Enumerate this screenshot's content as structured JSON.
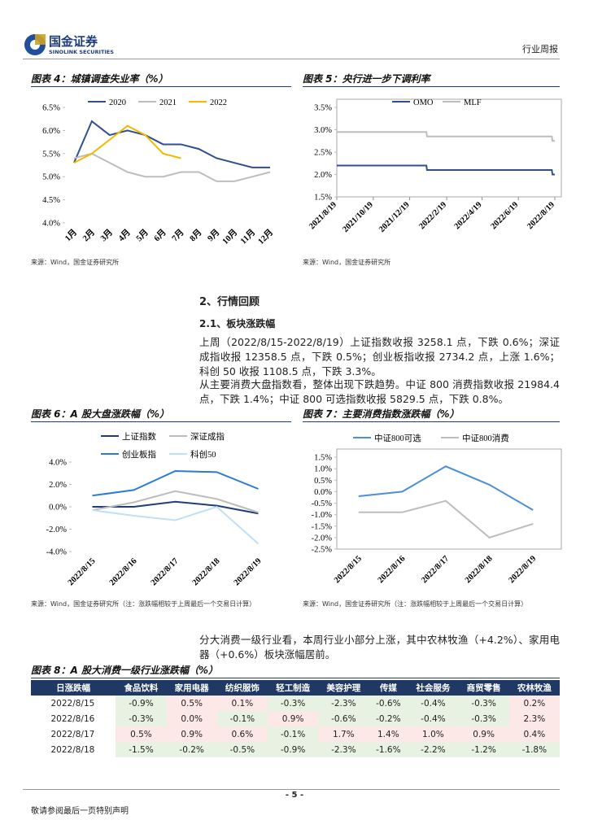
{
  "header": {
    "logo": "国金证券",
    "logo_en": "SINOLINK SECURITIES",
    "report_type": "行业周报"
  },
  "chart_data": [
    {
      "type": "line",
      "title": "图表 4：城镇调查失业率（%）",
      "source": "来源：Wind，国金证券研究所",
      "categories": [
        "1月",
        "2月",
        "3月",
        "4月",
        "5月",
        "6月",
        "7月",
        "8月",
        "9月",
        "10月",
        "11月",
        "12月"
      ],
      "series": [
        {
          "name": "2020",
          "color": "#2f4f8f",
          "values": [
            5.3,
            6.2,
            5.9,
            6.0,
            5.9,
            5.7,
            5.7,
            5.6,
            5.4,
            5.3,
            5.2,
            5.2
          ]
        },
        {
          "name": "2021",
          "color": "#bdbdbd",
          "values": [
            5.4,
            5.5,
            5.3,
            5.1,
            5.0,
            5.0,
            5.1,
            5.1,
            4.9,
            4.9,
            5.0,
            5.1
          ]
        },
        {
          "name": "2022",
          "color": "#f5b800",
          "values": [
            5.3,
            5.5,
            5.8,
            6.1,
            5.9,
            5.5,
            5.4,
            null,
            null,
            null,
            null,
            null
          ]
        }
      ],
      "ylim": [
        4.0,
        6.5
      ],
      "yticks": [
        {
          "value": 4.0,
          "label": "4.0%"
        },
        {
          "value": 4.5,
          "label": "4.5%"
        },
        {
          "value": 5.0,
          "label": "5.0%"
        },
        {
          "value": 5.5,
          "label": "5.5%"
        },
        {
          "value": 6.0,
          "label": "6.0%"
        },
        {
          "value": 6.5,
          "label": "6.5%"
        }
      ]
    },
    {
      "type": "line",
      "title": "图表 5：央行进一步下调利率",
      "source": "来源：Wind，国金证券研究所",
      "x": [
        "2021/8/19",
        "2022/1/16",
        "2022/1/17",
        "2022/8/14",
        "2022/8/15",
        "2022/8/19"
      ],
      "series": [
        {
          "name": "OMO",
          "color": "#2f4f8f",
          "values": [
            2.2,
            2.2,
            2.1,
            2.1,
            2.0,
            2.0
          ]
        },
        {
          "name": "MLF",
          "color": "#bdbdbd",
          "values": [
            2.95,
            2.95,
            2.85,
            2.85,
            2.75,
            2.75
          ]
        }
      ],
      "xlim": [
        "2021/8/19",
        "2022/8/19"
      ],
      "xticks": [
        "2021/8/19",
        "2021/10/19",
        "2021/12/19",
        "2022/2/19",
        "2022/4/19",
        "2022/6/19",
        "2022/8/19"
      ],
      "ylim": [
        1.5,
        3.5
      ],
      "yticks": [
        {
          "value": 1.5,
          "label": "1.5%"
        },
        {
          "value": 2.0,
          "label": "2.0%"
        },
        {
          "value": 2.5,
          "label": "2.5%"
        },
        {
          "value": 3.0,
          "label": "3.0%"
        },
        {
          "value": 3.5,
          "label": "3.5%"
        }
      ]
    },
    {
      "type": "line",
      "title": "图表 6：A 股大盘涨跌幅（%）",
      "source": "来源：Wind，国金证券研究所（注：涨跌幅相较于上周最后一个交易日计算）",
      "categories": [
        "2022/8/15",
        "2022/8/16",
        "2022/8/17",
        "2022/8/18",
        "2022/8/19"
      ],
      "series": [
        {
          "name": "上证指数",
          "color": "#1f3d7a",
          "values": [
            0.0,
            0.0,
            0.45,
            0.1,
            -0.6
          ]
        },
        {
          "name": "深证成指",
          "color": "#bdbdbd",
          "values": [
            -0.3,
            0.4,
            1.4,
            0.7,
            -0.5
          ]
        },
        {
          "name": "创业板指",
          "color": "#2b7bd6",
          "values": [
            1.0,
            1.5,
            3.2,
            3.1,
            1.6
          ]
        },
        {
          "name": "科创50",
          "color": "#bfe0f5",
          "values": [
            -0.3,
            -0.8,
            -1.2,
            0.0,
            -3.3
          ]
        }
      ],
      "ylim": [
        -4.0,
        4.0
      ],
      "yticks": [
        {
          "value": -4.0,
          "label": "-4.0%"
        },
        {
          "value": -2.0,
          "label": "-2.0%"
        },
        {
          "value": 0.0,
          "label": "0.0%"
        },
        {
          "value": 2.0,
          "label": "2.0%"
        },
        {
          "value": 4.0,
          "label": "4.0%"
        }
      ]
    },
    {
      "type": "line",
      "title": "图表 7：主要消费指数涨跌幅（%）",
      "source": "来源：Wind，国金证券研究所（注：涨跌幅相较于上周最后一个交易日计算）",
      "categories": [
        "2022/8/15",
        "2022/8/16",
        "2022/8/17",
        "2022/8/18",
        "2022/8/19"
      ],
      "series": [
        {
          "name": "中证800可选",
          "color": "#4a8fd8",
          "values": [
            -0.2,
            0.0,
            1.1,
            0.3,
            -0.8
          ]
        },
        {
          "name": "中证800消费",
          "color": "#bdbdbd",
          "values": [
            -0.9,
            -0.9,
            -0.4,
            -2.0,
            -1.4
          ]
        }
      ],
      "ylim": [
        -2.5,
        1.5
      ],
      "yticks": [
        {
          "value": -2.5,
          "label": "-2.5%"
        },
        {
          "value": -2.0,
          "label": "-2.0%"
        },
        {
          "value": -1.5,
          "label": "-1.5%"
        },
        {
          "value": -1.0,
          "label": "-1.0%"
        },
        {
          "value": -0.5,
          "label": "-0.5%"
        },
        {
          "value": 0.0,
          "label": "0.0%"
        },
        {
          "value": 0.5,
          "label": "0.5%"
        },
        {
          "value": 1.0,
          "label": "1.0%"
        },
        {
          "value": 1.5,
          "label": "1.5%"
        }
      ]
    }
  ],
  "section": {
    "title": "2、行情回顾",
    "subtitle": "2.1、板块涨跌幅"
  },
  "paragraphs": [
    "上周（2022/8/15-2022/8/19）上证指数收报 3258.1 点，下跌 0.6%；深证成指收报 12358.5 点，下跌 0.5%；创业板指收报 2734.2 点，上涨 1.6%；科创 50 收报 1108.5 点，下跌 3.3%。",
    "从主要消费大盘指数看，整体出现下跌趋势。中证 800 消费指数收报 21984.4 点，下跌 1.4%；中证 800 可选指数收报 5829.5 点，下跌 0.8%。",
    "分大消费一级行业看，本周行业小部分上涨，其中农林牧渔（+4.2%）、家用电器（+0.6%）板块涨幅居前。"
  ],
  "table": {
    "title": "图表 8：A 股大消费一级行业涨跌幅（%）",
    "header": [
      "日涨跌幅",
      "食品饮料",
      "家用电器",
      "纺织服饰",
      "轻工制造",
      "美容护理",
      "传媒",
      "社会服务",
      "商贸零售",
      "农林牧渔"
    ],
    "rows": [
      [
        "2022/8/15",
        "-0.9%",
        "0.5%",
        "0.1%",
        "-0.3%",
        "-2.3%",
        "-0.6%",
        "-0.4%",
        "-0.3%",
        "0.2%"
      ],
      [
        "2022/8/16",
        "-0.3%",
        "0.0%",
        "-0.1%",
        "0.9%",
        "-0.6%",
        "-0.2%",
        "-0.4%",
        "-0.3%",
        "2.3%"
      ],
      [
        "2022/8/17",
        "0.5%",
        "0.9%",
        "0.6%",
        "-0.1%",
        "1.7%",
        "1.4%",
        "1.0%",
        "0.9%",
        "0.4%"
      ],
      [
        "2022/8/18",
        "-1.5%",
        "-0.2%",
        "-0.5%",
        "-0.9%",
        "-2.3%",
        "-1.6%",
        "-2.2%",
        "-1.2%",
        "-1.8%"
      ]
    ]
  },
  "footer": {
    "page": "- 5 -",
    "disclaimer": "敬请参阅最后一页特别声明"
  }
}
